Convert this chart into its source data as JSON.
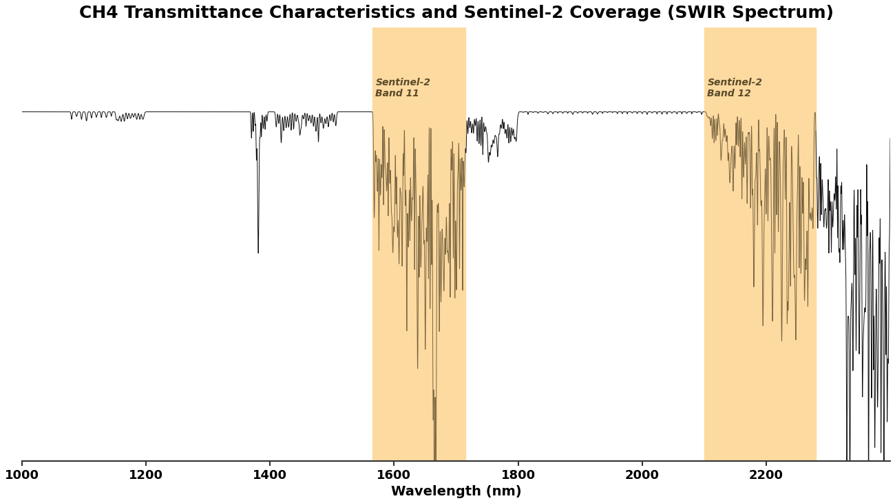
{
  "title": "CH4 Transmittance Characteristics and Sentinel-2 Coverage (SWIR Spectrum)",
  "xlabel": "Wavelength (nm)",
  "ylabel": "",
  "xlim": [
    1000,
    2400
  ],
  "ylim": [
    -0.65,
    1.25
  ],
  "xticks": [
    1000,
    1200,
    1400,
    1600,
    1800,
    2000,
    2200
  ],
  "band11_range": [
    1565,
    1715
  ],
  "band12_range": [
    2100,
    2280
  ],
  "band11_label": "Sentinel-2\nBand 11",
  "band12_label": "Sentinel-2\nBand 12",
  "band_color": "#FDDAA0",
  "band_label_color": "#5a4a2a",
  "baseline": 0.88,
  "line_color_normal": "#111111",
  "line_color_band": "#7a6540",
  "background_color": "#ffffff",
  "title_fontsize": 18,
  "label_fontsize": 14,
  "tick_fontsize": 13
}
